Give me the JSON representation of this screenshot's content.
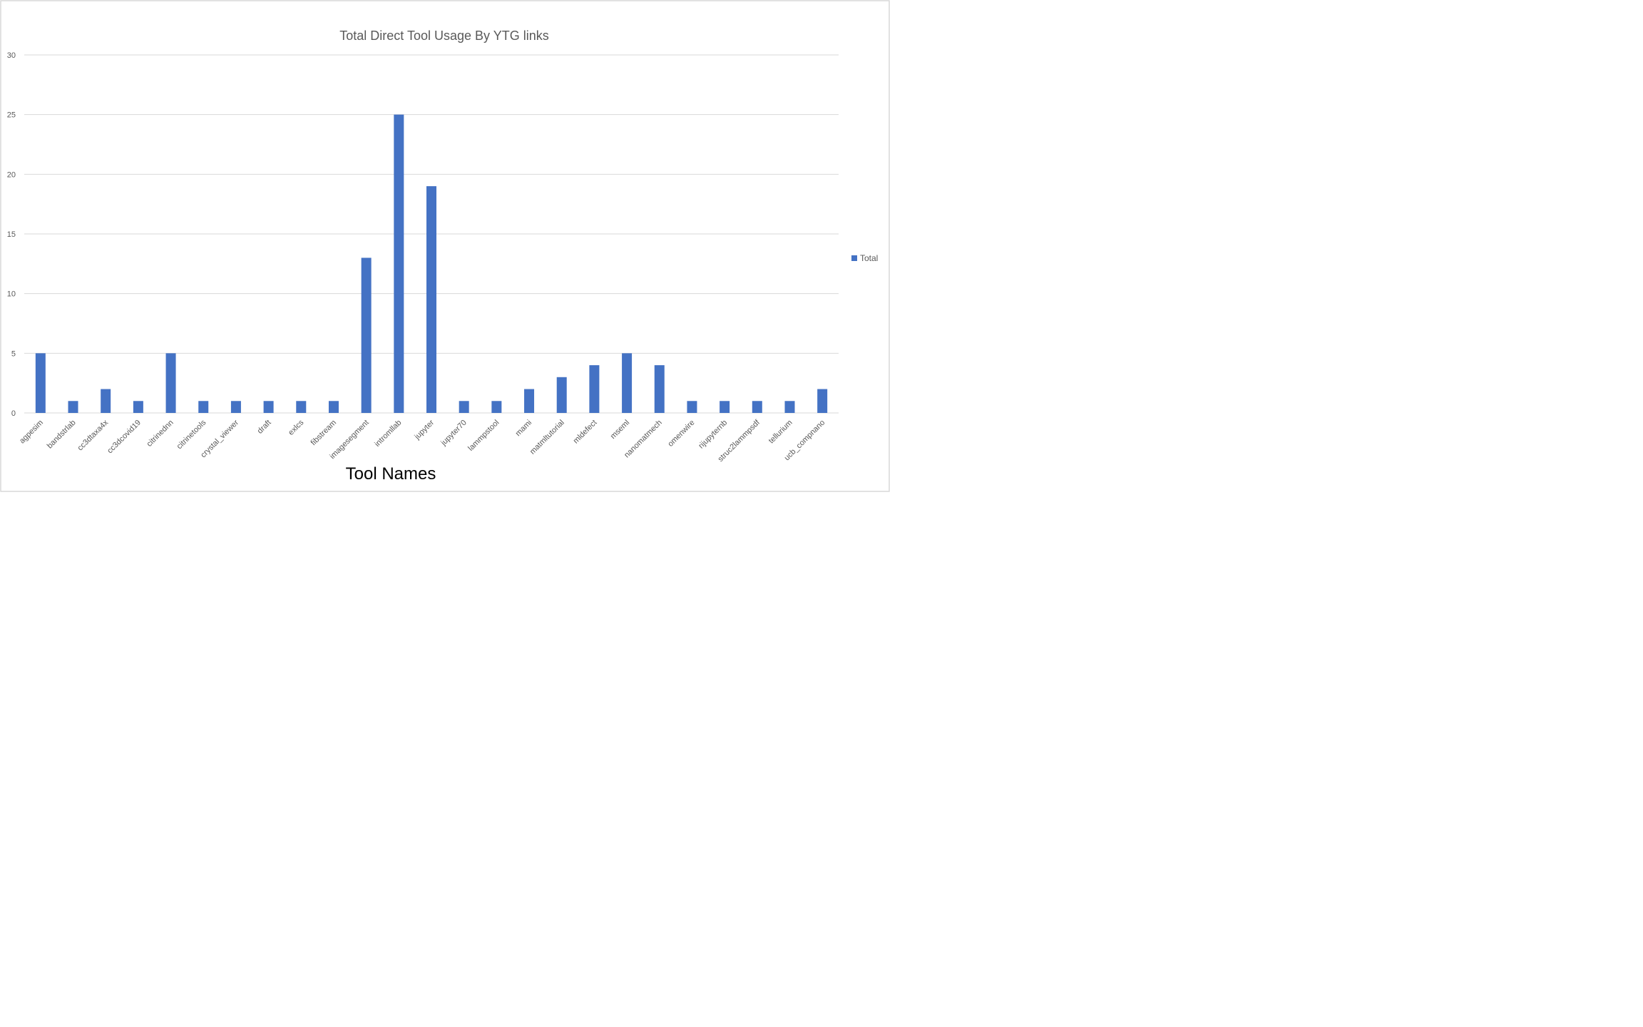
{
  "chart_data": {
    "type": "bar",
    "title": "Total Direct Tool Usage By YTG links",
    "xlabel": "Tool Names",
    "ylabel": "",
    "ylim": [
      0,
      30
    ],
    "yticks": [
      0,
      5,
      10,
      15,
      20,
      25,
      30
    ],
    "grid": true,
    "legend_position": "right",
    "colors": {
      "bar": "#4472C4",
      "grid": "#d9d9d9",
      "text": "#595959",
      "frame": "#d9d9d9"
    },
    "categories": [
      "agpesim",
      "bandstrlab",
      "cc3dtaxa4x",
      "cc3dcovid19",
      "citrinednn",
      "citrinetools",
      "crystal_viewer",
      "draft",
      "exlcs",
      "fibstream",
      "imagesegment",
      "intromllab",
      "jupyter",
      "jupyter70",
      "lammpstool",
      "mami",
      "matmltutorial",
      "mldefect",
      "mseml",
      "nanomatmech",
      "omenwire",
      "rijupyternb",
      "struc2lammpsdf",
      "tellurium",
      "ucb_compnano"
    ],
    "series": [
      {
        "name": "Total",
        "values": [
          5,
          1,
          2,
          1,
          5,
          1,
          1,
          1,
          1,
          1,
          13,
          25,
          19,
          1,
          1,
          2,
          3,
          4,
          5,
          4,
          1,
          1,
          1,
          1,
          2
        ]
      }
    ]
  }
}
